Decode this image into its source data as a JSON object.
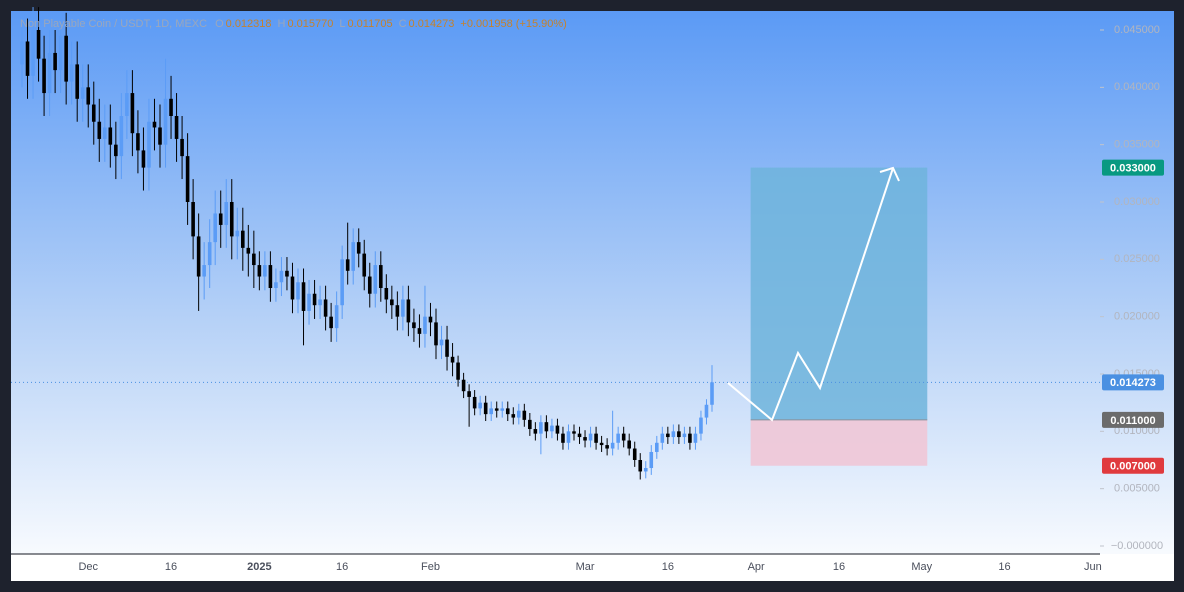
{
  "chart_data": {
    "type": "candlestick",
    "header": {
      "symbol": "Non Playable Coin / USDT, 1D, MEXC",
      "fields": [
        {
          "label": "O",
          "value": "0.012318"
        },
        {
          "label": "H",
          "value": "0.015770"
        },
        {
          "label": "L",
          "value": "0.011705"
        },
        {
          "label": "C",
          "value": "0.014273"
        }
      ],
      "change": "+0.001958 (+15.90%)"
    },
    "up_color": "#5b9cf6",
    "down_color": "#000000",
    "open": [
      0.042,
      0.044,
      0.041,
      0.045,
      0.0425,
      0.0395,
      0.043,
      0.0415,
      0.0445,
      0.0405,
      0.042,
      0.039,
      0.04,
      0.0385,
      0.037,
      0.0355,
      0.0365,
      0.035,
      0.034,
      0.0375,
      0.0395,
      0.036,
      0.0345,
      0.033,
      0.037,
      0.0365,
      0.035,
      0.039,
      0.0375,
      0.0355,
      0.034,
      0.03,
      0.027,
      0.0235,
      0.0245,
      0.0265,
      0.029,
      0.028,
      0.03,
      0.027,
      0.0275,
      0.026,
      0.0255,
      0.0245,
      0.0235,
      0.0245,
      0.0225,
      0.023,
      0.024,
      0.0235,
      0.0215,
      0.023,
      0.0205,
      0.022,
      0.021,
      0.0215,
      0.02,
      0.019,
      0.021,
      0.025,
      0.024,
      0.0265,
      0.0255,
      0.0235,
      0.022,
      0.0245,
      0.0225,
      0.0215,
      0.021,
      0.02,
      0.0215,
      0.0195,
      0.019,
      0.0185,
      0.02,
      0.0195,
      0.0175,
      0.018,
      0.0165,
      0.016,
      0.0145,
      0.0135,
      0.013,
      0.012,
      0.0125,
      0.0115,
      0.012,
      0.0118,
      0.012,
      0.0115,
      0.0112,
      0.0118,
      0.011,
      0.0102,
      0.0098,
      0.0108,
      0.01,
      0.0105,
      0.0098,
      0.009,
      0.01,
      0.0098,
      0.0095,
      0.0092,
      0.0098,
      0.009,
      0.0088,
      0.0085,
      0.009,
      0.0098,
      0.0092,
      0.0085,
      0.0075,
      0.0065,
      0.0068,
      0.0082,
      0.009,
      0.0098,
      0.0095,
      0.01,
      0.0095,
      0.0098,
      0.009,
      0.0098,
      0.0112,
      0.012318
    ],
    "high": [
      0.046,
      0.046,
      0.047,
      0.047,
      0.0445,
      0.045,
      0.045,
      0.0465,
      0.0465,
      0.044,
      0.044,
      0.042,
      0.042,
      0.0405,
      0.039,
      0.0385,
      0.0385,
      0.037,
      0.0395,
      0.0415,
      0.0415,
      0.038,
      0.0365,
      0.039,
      0.039,
      0.0385,
      0.0425,
      0.041,
      0.0395,
      0.0375,
      0.036,
      0.032,
      0.029,
      0.0265,
      0.0285,
      0.031,
      0.031,
      0.032,
      0.032,
      0.0295,
      0.0295,
      0.028,
      0.0275,
      0.0257,
      0.0257,
      0.0257,
      0.0242,
      0.0252,
      0.0252,
      0.0247,
      0.0242,
      0.0242,
      0.0232,
      0.0232,
      0.0227,
      0.0227,
      0.0212,
      0.0222,
      0.0262,
      0.0282,
      0.0277,
      0.0277,
      0.0267,
      0.0247,
      0.0257,
      0.0257,
      0.0237,
      0.0227,
      0.0222,
      0.0227,
      0.0227,
      0.0207,
      0.0202,
      0.0227,
      0.0212,
      0.0207,
      0.0192,
      0.0192,
      0.0177,
      0.0166,
      0.0151,
      0.0141,
      0.0136,
      0.0131,
      0.0131,
      0.0126,
      0.0126,
      0.0126,
      0.0126,
      0.0121,
      0.0124,
      0.0124,
      0.0116,
      0.0108,
      0.0114,
      0.0114,
      0.0111,
      0.0111,
      0.0104,
      0.0106,
      0.0106,
      0.0104,
      0.0101,
      0.0104,
      0.0104,
      0.0096,
      0.0094,
      0.0118,
      0.0104,
      0.0104,
      0.0098,
      0.0091,
      0.0081,
      0.0074,
      0.0088,
      0.0096,
      0.0104,
      0.0104,
      0.0106,
      0.0106,
      0.0104,
      0.0104,
      0.0104,
      0.0118,
      0.0128,
      0.01577
    ],
    "low": [
      0.04,
      0.039,
      0.039,
      0.0405,
      0.0375,
      0.0375,
      0.0395,
      0.0395,
      0.0385,
      0.0385,
      0.037,
      0.037,
      0.0365,
      0.035,
      0.0335,
      0.0335,
      0.033,
      0.032,
      0.032,
      0.0355,
      0.034,
      0.0325,
      0.031,
      0.031,
      0.0345,
      0.033,
      0.033,
      0.0355,
      0.0335,
      0.032,
      0.028,
      0.025,
      0.0205,
      0.0215,
      0.0225,
      0.0245,
      0.026,
      0.026,
      0.025,
      0.025,
      0.024,
      0.0235,
      0.0225,
      0.0223,
      0.0223,
      0.0213,
      0.0213,
      0.0218,
      0.0223,
      0.0203,
      0.0203,
      0.0175,
      0.0193,
      0.0198,
      0.0198,
      0.0188,
      0.0178,
      0.0178,
      0.0198,
      0.0228,
      0.0228,
      0.0243,
      0.0223,
      0.0208,
      0.0208,
      0.0213,
      0.0203,
      0.0198,
      0.0188,
      0.0188,
      0.0183,
      0.0178,
      0.0173,
      0.0173,
      0.0183,
      0.0163,
      0.0163,
      0.0153,
      0.0148,
      0.0139,
      0.0129,
      0.0104,
      0.0114,
      0.0114,
      0.0109,
      0.0109,
      0.0112,
      0.0112,
      0.0109,
      0.0106,
      0.0106,
      0.0104,
      0.0096,
      0.0092,
      0.008,
      0.0094,
      0.0094,
      0.0092,
      0.0084,
      0.0084,
      0.0092,
      0.0089,
      0.0086,
      0.0086,
      0.0084,
      0.0082,
      0.0079,
      0.0079,
      0.0084,
      0.0086,
      0.0079,
      0.0069,
      0.0058,
      0.0059,
      0.0062,
      0.0076,
      0.0084,
      0.0089,
      0.0089,
      0.0089,
      0.0089,
      0.0084,
      0.0084,
      0.0092,
      0.0106,
      0.011705
    ],
    "close": [
      0.044,
      0.041,
      0.045,
      0.0425,
      0.0395,
      0.043,
      0.0415,
      0.0445,
      0.0405,
      0.042,
      0.039,
      0.04,
      0.0385,
      0.037,
      0.0355,
      0.0365,
      0.035,
      0.034,
      0.0375,
      0.0395,
      0.036,
      0.0345,
      0.033,
      0.037,
      0.0365,
      0.035,
      0.039,
      0.0375,
      0.0355,
      0.034,
      0.03,
      0.027,
      0.0235,
      0.0245,
      0.0265,
      0.029,
      0.028,
      0.03,
      0.027,
      0.0275,
      0.026,
      0.0255,
      0.0245,
      0.0235,
      0.0245,
      0.0225,
      0.023,
      0.024,
      0.0235,
      0.0215,
      0.023,
      0.0205,
      0.022,
      0.021,
      0.0215,
      0.02,
      0.019,
      0.021,
      0.025,
      0.024,
      0.0265,
      0.0255,
      0.0235,
      0.022,
      0.0245,
      0.0225,
      0.0215,
      0.021,
      0.02,
      0.0215,
      0.0195,
      0.019,
      0.0185,
      0.02,
      0.0195,
      0.0175,
      0.018,
      0.0165,
      0.016,
      0.0145,
      0.0135,
      0.013,
      0.012,
      0.0125,
      0.0115,
      0.012,
      0.0118,
      0.012,
      0.0115,
      0.0112,
      0.0118,
      0.011,
      0.0102,
      0.0098,
      0.0108,
      0.01,
      0.0105,
      0.0098,
      0.009,
      0.01,
      0.0098,
      0.0095,
      0.0092,
      0.0098,
      0.009,
      0.0088,
      0.0085,
      0.009,
      0.0098,
      0.0092,
      0.0085,
      0.0075,
      0.0065,
      0.0068,
      0.0082,
      0.009,
      0.0098,
      0.0095,
      0.01,
      0.0095,
      0.0098,
      0.009,
      0.0098,
      0.0112,
      0.012318,
      0.014273
    ],
    "xaxis_labels": [
      "Dec",
      "16",
      "2025",
      "16",
      "Feb",
      "Mar",
      "16",
      "Apr",
      "16",
      "May",
      "16",
      "Jun"
    ],
    "ylim": [
      0,
      0.045
    ],
    "yticks": [
      {
        "value": 0,
        "label": "−0.000000"
      },
      {
        "value": 0.005,
        "label": "0.005000"
      },
      {
        "value": 0.01,
        "label": "0.010000"
      },
      {
        "value": 0.015,
        "label": "0.015000"
      },
      {
        "value": 0.02,
        "label": "0.020000"
      },
      {
        "value": 0.025,
        "label": "0.025000"
      },
      {
        "value": 0.03,
        "label": "0.030000"
      },
      {
        "value": 0.035,
        "label": "0.035000"
      },
      {
        "value": 0.04,
        "label": "0.040000"
      },
      {
        "value": 0.045,
        "label": "0.045000"
      }
    ],
    "last_price": {
      "value": 0.014273,
      "label": "0.014273",
      "color": "#4a90e2"
    },
    "position": {
      "target": {
        "value": 0.033,
        "label": "0.033000",
        "color": "#089981"
      },
      "entry": {
        "value": 0.011,
        "label": "0.011000",
        "color": "#6b6b6b"
      },
      "stop": {
        "value": 0.007,
        "label": "0.007000",
        "color": "#e03a3e"
      },
      "profit_color": "#6fb4dc",
      "loss_color": "#f0c6d6"
    }
  }
}
